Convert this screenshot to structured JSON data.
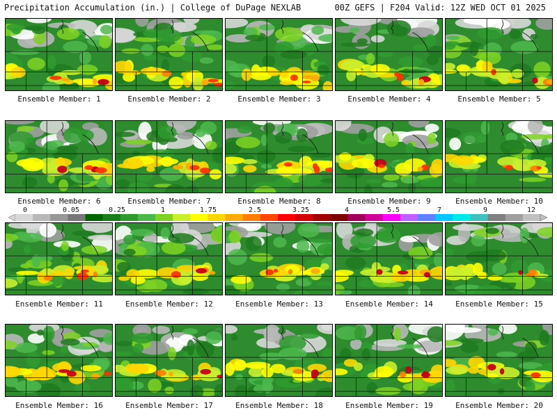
{
  "header": {
    "left_title": "Precipitation Accumulation (in.) | College of DuPage NEXLAB",
    "right_title": "00Z GEFS | F204 Valid: 12Z WED OCT 01 2025"
  },
  "colorbar": {
    "tick_labels": [
      "0",
      "0.05",
      "0.25",
      "1",
      "1.75",
      "2.5",
      "3.25",
      "4",
      "5.5",
      "7",
      "9",
      "12"
    ],
    "colors": [
      "#d8d8d8",
      "#b8b8b8",
      "#989898",
      "#787878",
      "#006400",
      "#1a7f1a",
      "#2e9b2e",
      "#4cb84c",
      "#7ed321",
      "#c9ef2c",
      "#ffff00",
      "#ffd700",
      "#ffaa00",
      "#ff7f00",
      "#ff4500",
      "#ff0000",
      "#d20000",
      "#a00000",
      "#800000",
      "#a0005a",
      "#d0009a",
      "#ff00ff",
      "#c060ff",
      "#6080ff",
      "#00c8ff",
      "#00e8e8",
      "#40c0c0",
      "#808080",
      "#a0a0a0",
      "#c0c0c0"
    ]
  },
  "members": [
    {
      "label": "Ensemble Member: 1"
    },
    {
      "label": "Ensemble Member: 2"
    },
    {
      "label": "Ensemble Member: 3"
    },
    {
      "label": "Ensemble Member: 4"
    },
    {
      "label": "Ensemble Member: 5"
    },
    {
      "label": "Ensemble Member: 6"
    },
    {
      "label": "Ensemble Member: 7"
    },
    {
      "label": "Ensemble Member: 8"
    },
    {
      "label": "Ensemble Member: 9"
    },
    {
      "label": "Ensemble Member: 10"
    },
    {
      "label": "Ensemble Member: 11"
    },
    {
      "label": "Ensemble Member: 12"
    },
    {
      "label": "Ensemble Member: 13"
    },
    {
      "label": "Ensemble Member: 14"
    },
    {
      "label": "Ensemble Member: 15"
    },
    {
      "label": "Ensemble Member: 16"
    },
    {
      "label": "Ensemble Member: 17"
    },
    {
      "label": "Ensemble Member: 18"
    },
    {
      "label": "Ensemble Member: 19"
    },
    {
      "label": "Ensemble Member: 20"
    }
  ]
}
